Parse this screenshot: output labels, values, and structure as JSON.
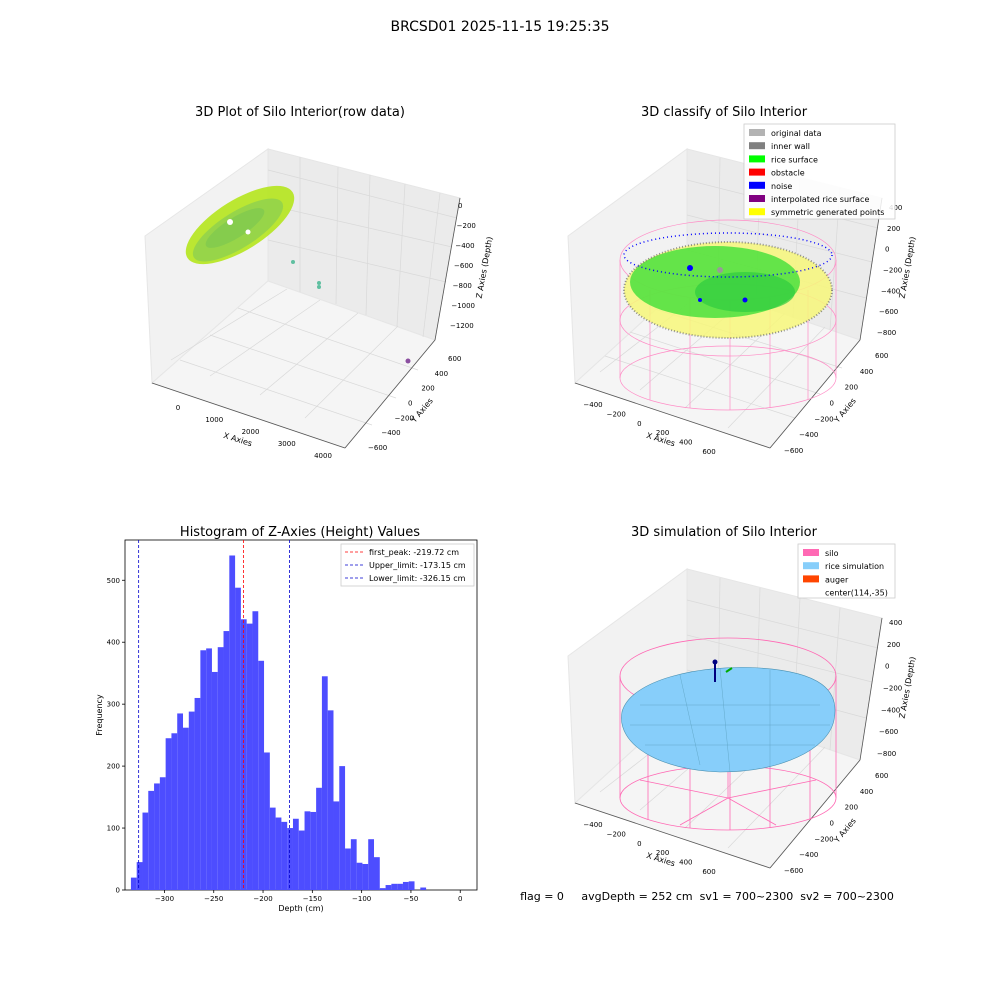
{
  "suptitle": "BRCSD01 2025-11-15 19:25:35",
  "footer": "flag = 0     avgDepth = 252 cm  sv1 = 700~2300  sv2 = 700~2300",
  "colors": {
    "pane": "#f2f2f2",
    "grid": "#d9d9d9",
    "hist_bar": "#4d4dff",
    "raw_points": "#a6d62e",
    "silo_wire": "#ff69b4",
    "rice_sim": "#87cefa"
  },
  "chart_data": [
    {
      "type": "scatter3d",
      "title": "3D Plot of Silo Interior(row data)",
      "xlabel": "X Axies",
      "ylabel": "Y Axies",
      "zlabel": "Z Axies (Depth)",
      "x_ticks": [
        "0",
        "1000",
        "2000",
        "3000",
        "4000"
      ],
      "y_ticks": [
        "600",
        "400",
        "200",
        "0",
        "−200",
        "−400",
        "−600"
      ],
      "z_ticks": [
        "0",
        "−200",
        "−400",
        "−600",
        "−800",
        "−1000",
        "−1200"
      ],
      "grid": true
    },
    {
      "type": "scatter3d",
      "title": "3D classify of Silo Interior",
      "xlabel": "X Axies",
      "ylabel": "Y Axies",
      "zlabel": "Z Axies (Depth)",
      "x_ticks": [
        "−400",
        "−200",
        "0",
        "200",
        "400",
        "600"
      ],
      "y_ticks": [
        "600",
        "400",
        "200",
        "0",
        "−200",
        "−400",
        "−600"
      ],
      "z_ticks": [
        "400",
        "200",
        "0",
        "−200",
        "−400",
        "−600",
        "−800"
      ],
      "legend": [
        {
          "label": "original data",
          "color": "#b3b3b3"
        },
        {
          "label": "inner wall",
          "color": "#808080"
        },
        {
          "label": "rice surface",
          "color": "#00ff00"
        },
        {
          "label": "obstacle",
          "color": "#ff0000"
        },
        {
          "label": "noise",
          "color": "#0000ff"
        },
        {
          "label": "interpolated rice surface",
          "color": "#800080"
        },
        {
          "label": "symmetric generated points",
          "color": "#ffff00"
        }
      ],
      "legend_position": "top-right",
      "grid": true
    },
    {
      "type": "bar",
      "title": "Histogram of Z-Axies (Height) Values",
      "xlabel": "Depth (cm)",
      "ylabel": "Frequency",
      "xlim": [
        -340,
        17
      ],
      "ylim": [
        0,
        565
      ],
      "x_ticks": [
        -300,
        -250,
        -200,
        -150,
        -100,
        -50,
        0
      ],
      "y_ticks": [
        0,
        100,
        200,
        300,
        400,
        500
      ],
      "bin_edges_start": -334,
      "bin_width": 5.87,
      "values": [
        20,
        45,
        125,
        160,
        172,
        182,
        245,
        253,
        285,
        262,
        288,
        310,
        387,
        390,
        352,
        392,
        418,
        540,
        488,
        437,
        430,
        450,
        370,
        222,
        133,
        117,
        110,
        100,
        115,
        96,
        127,
        126,
        165,
        345,
        290,
        143,
        200,
        67,
        82,
        44,
        42,
        82,
        53,
        3,
        8,
        10,
        10,
        13,
        14,
        0,
        4
      ],
      "vlines": [
        {
          "label": "first_peak: -219.72 cm",
          "x": -219.72,
          "color": "#ff0000"
        },
        {
          "label": "Upper_limit: -173.15 cm",
          "x": -173.15,
          "color": "#0000cc"
        },
        {
          "label": "Lower_limit: -326.15 cm",
          "x": -326.15,
          "color": "#0000cc"
        }
      ],
      "legend_position": "top-right"
    },
    {
      "type": "surface3d",
      "title": "3D simulation of Silo Interior",
      "xlabel": "X Axies",
      "ylabel": "Y Axies",
      "zlabel": "Z Axies (Depth)",
      "x_ticks": [
        "−400",
        "−200",
        "0",
        "200",
        "400",
        "600"
      ],
      "y_ticks": [
        "600",
        "400",
        "200",
        "0",
        "−200",
        "−400",
        "−600"
      ],
      "z_ticks": [
        "400",
        "200",
        "0",
        "−200",
        "−400",
        "−600",
        "−800"
      ],
      "legend": [
        {
          "label": "silo",
          "color": "#ff69b4"
        },
        {
          "label": "rice simulation",
          "color": "#87cefa"
        },
        {
          "label": "auger",
          "color": "#ff4500"
        },
        {
          "label": "center(114,-35)",
          "color": ""
        }
      ],
      "legend_position": "top-right",
      "grid": true
    }
  ]
}
